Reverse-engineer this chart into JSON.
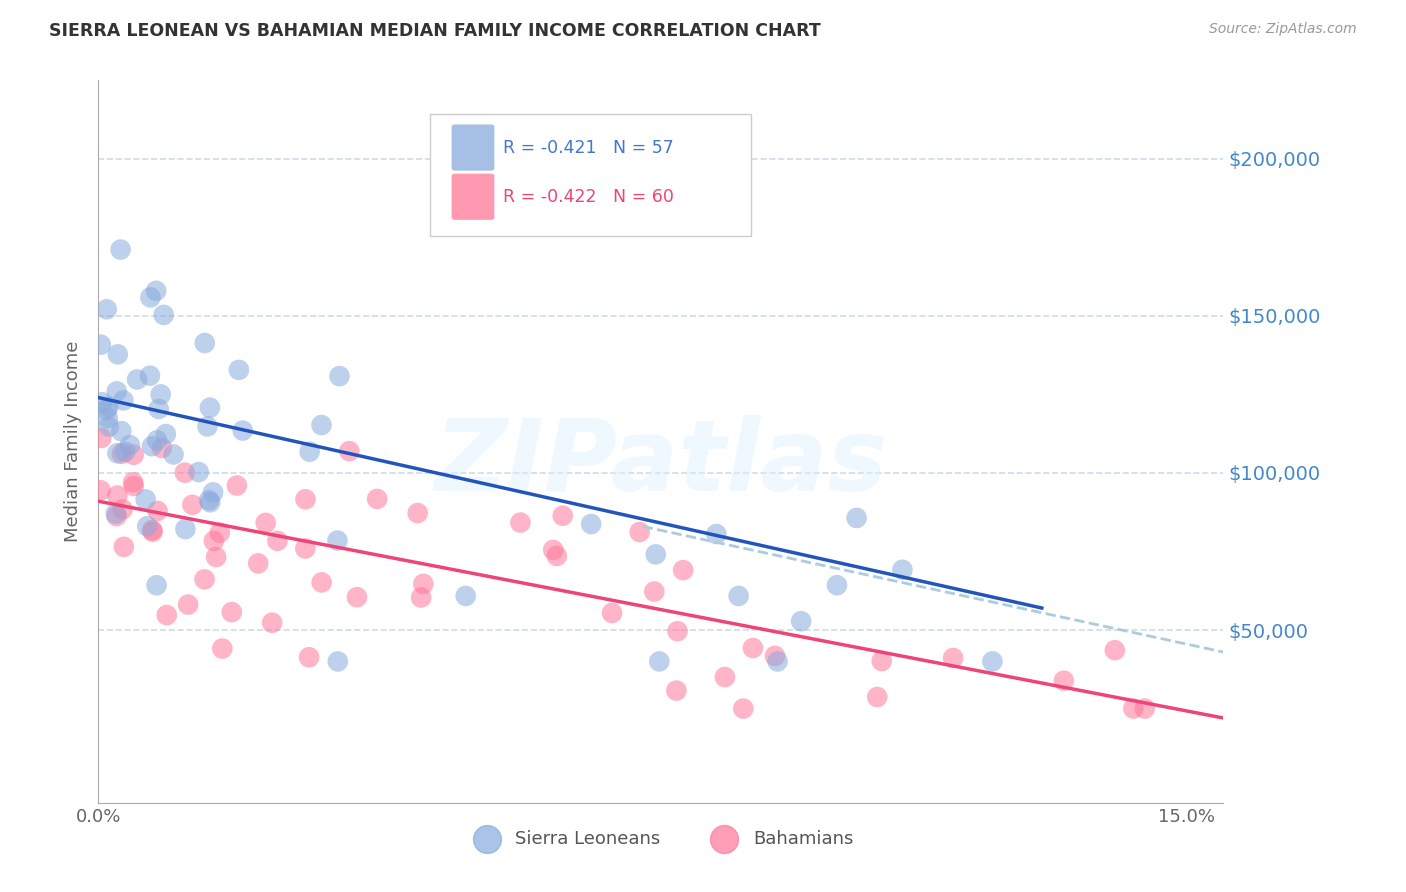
{
  "title": "SIERRA LEONEAN VS BAHAMIAN MEDIAN FAMILY INCOME CORRELATION CHART",
  "source": "Source: ZipAtlas.com",
  "ylabel": "Median Family Income",
  "xlim": [
    0.0,
    0.155
  ],
  "ylim": [
    -5000,
    225000
  ],
  "ytick_vals": [
    50000,
    100000,
    150000,
    200000
  ],
  "ytick_labels": [
    "$50,000",
    "$100,000",
    "$150,000",
    "$200,000"
  ],
  "xtick_vals": [
    0.0,
    0.15
  ],
  "xtick_labels": [
    "0.0%",
    "15.0%"
  ],
  "sierra_R": -0.421,
  "sierra_N": 57,
  "bahamian_R": -0.422,
  "bahamian_N": 60,
  "sierra_color": "#88AADD",
  "bahamian_color": "#FF7799",
  "blue_line_color": "#2255BB",
  "pink_line_color": "#EE4477",
  "dashed_line_color": "#AACCDD",
  "background_color": "#FFFFFF",
  "grid_color": "#CCDDEE",
  "title_color": "#333333",
  "right_label_color": "#4488CC",
  "axis_color": "#AAAAAA",
  "tick_color": "#666666",
  "watermark_text": "ZIPatlas",
  "watermark_color": "#DDEEFF",
  "watermark_alpha": 0.45,
  "sierra_line_x": [
    0.0,
    0.13
  ],
  "sierra_line_y": [
    124000,
    57000
  ],
  "bahamian_line_x": [
    0.0,
    0.155
  ],
  "bahamian_line_y": [
    91000,
    22000
  ],
  "dashed_line_x": [
    0.075,
    0.155
  ],
  "dashed_line_y": [
    83000,
    43000
  ],
  "legend_sierra_color": "#4477CC",
  "legend_bahamian_color": "#EE4477"
}
